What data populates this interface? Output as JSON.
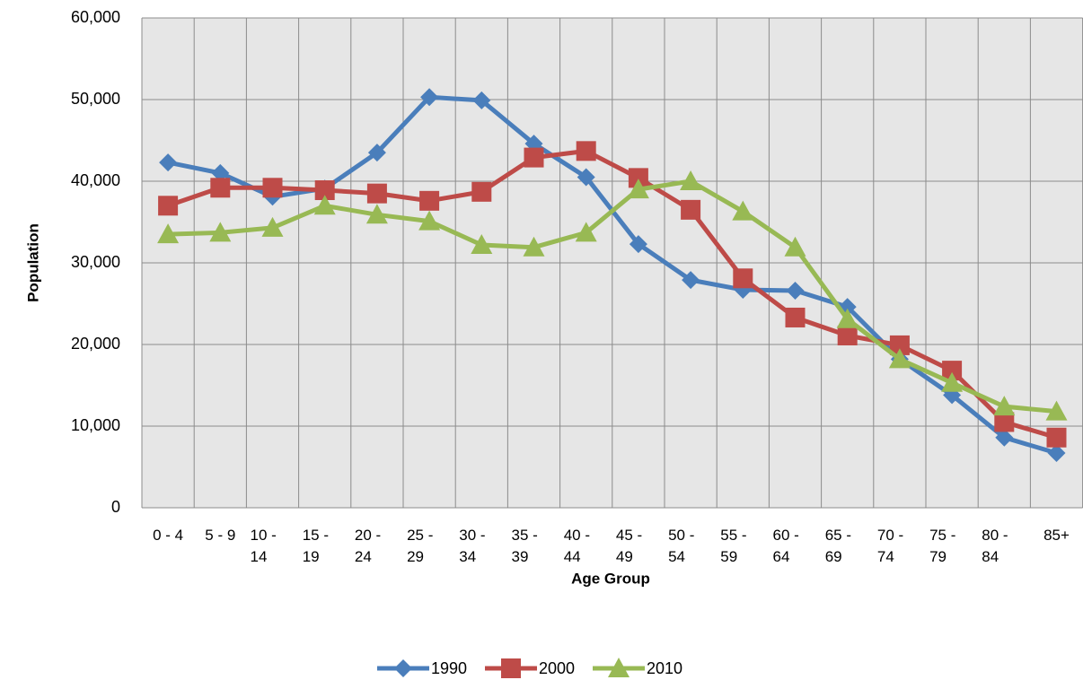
{
  "chart_data": {
    "type": "line",
    "x_label": "Age Group",
    "y_label": "Population",
    "categories": [
      "0 - 4",
      "5 - 9",
      "10 - 14",
      "15 - 19",
      "20 - 24",
      "25 - 29",
      "30 - 34",
      "35 - 39",
      "40 - 44",
      "45 - 49",
      "50 - 54",
      "55 - 59",
      "60 - 64",
      "65 - 69",
      "70 - 74",
      "75 - 79",
      "80 - 84",
      "85+"
    ],
    "series": [
      {
        "name": "1990",
        "color": "#4a7ebb",
        "marker": "diamond",
        "values": [
          42300,
          41000,
          38100,
          39100,
          43500,
          50300,
          49900,
          44600,
          40500,
          32300,
          27900,
          26700,
          26600,
          24600,
          18200,
          13800,
          8600,
          6700
        ]
      },
      {
        "name": "2000",
        "color": "#be4b48",
        "marker": "square",
        "values": [
          37000,
          39200,
          39200,
          38900,
          38500,
          37600,
          38700,
          42900,
          43700,
          40400,
          36500,
          28100,
          23300,
          21100,
          19900,
          16800,
          10500,
          8600
        ]
      },
      {
        "name": "2010",
        "color": "#98b954",
        "marker": "triangle",
        "values": [
          33500,
          33700,
          34300,
          37000,
          35900,
          35100,
          32200,
          31900,
          33700,
          39000,
          40000,
          36300,
          31900,
          23100,
          18200,
          15300,
          12400,
          11800
        ]
      }
    ],
    "ylim": [
      0,
      60000
    ],
    "yticks": [
      0,
      {
        "value": 10000,
        "label": "10,000"
      },
      {
        "value": 20000,
        "label": "20,000"
      },
      {
        "value": 30000,
        "label": "30,000"
      },
      {
        "value": 40000,
        "label": "40,000"
      },
      {
        "value": 50000,
        "label": "50,000"
      },
      {
        "value": 60000,
        "label": "60,000"
      }
    ],
    "grid": true,
    "legend": "bottom"
  }
}
